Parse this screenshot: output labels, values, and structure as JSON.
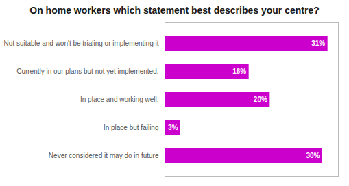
{
  "chart_data": {
    "type": "bar",
    "orientation": "horizontal",
    "title": "On home workers which statement best describes your centre?",
    "categories": [
      "Never considered it may do in future",
      "In place but failing",
      "In place and working well.",
      "Currently in our plans but not yet implemented.",
      "Not suitable and won't be trialing or implementing it"
    ],
    "values": [
      30,
      3,
      20,
      16,
      31
    ],
    "value_labels": [
      "30%",
      "3%",
      "20%",
      "16%",
      "31%"
    ],
    "data_labels": true,
    "color": "#cc00cc",
    "xlim": [
      0,
      33
    ],
    "tick_labels": "y",
    "grid": false
  }
}
